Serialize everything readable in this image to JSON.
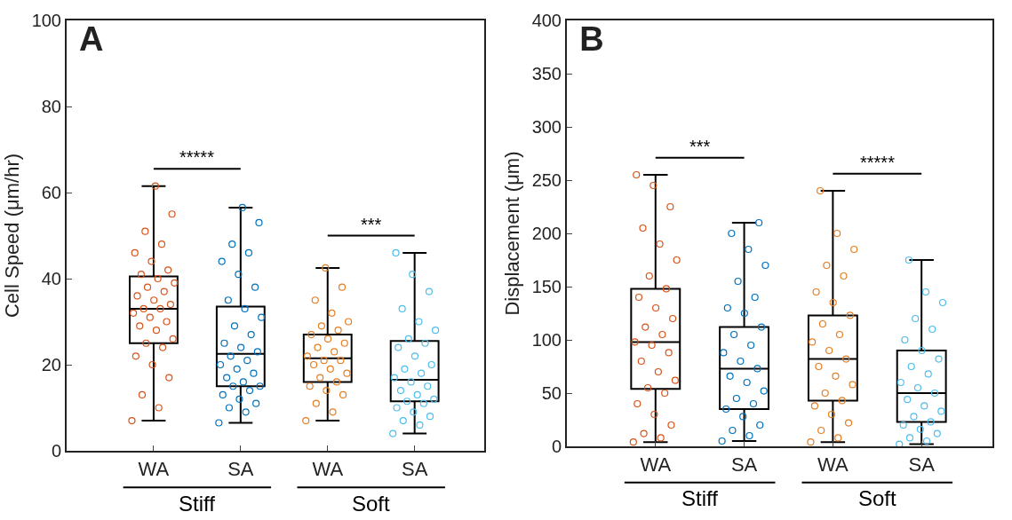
{
  "chart_data": [
    {
      "type": "box",
      "title": "A",
      "ylabel": "Cell Speed (μm/hr)",
      "categories": [
        "WA",
        "SA",
        "WA",
        "SA"
      ],
      "ylim": [
        0,
        100
      ],
      "yticks": [
        0,
        20,
        40,
        60,
        80,
        100
      ],
      "grid": false,
      "marker": "circle",
      "boxes": [
        {
          "low": 7,
          "q1": 25,
          "median": 33,
          "q3": 40.5,
          "high": 61.5
        },
        {
          "low": 6.5,
          "q1": 15,
          "median": 22.5,
          "q3": 33.5,
          "high": 56.5
        },
        {
          "low": 7,
          "q1": 16,
          "median": 21.5,
          "q3": 27,
          "high": 42.5
        },
        {
          "low": 4,
          "q1": 11.5,
          "median": 16.5,
          "q3": 25.5,
          "high": 46
        }
      ],
      "series": [
        {
          "type": "scatter",
          "colors": [
            "#d95319",
            "#0072bd",
            "#e67e22",
            "#4dbeee"
          ],
          "values": [
            7,
            6.5,
            7,
            4
          ]
        },
        {
          "type": "scatter",
          "colors": [
            "#d95319",
            "#0072bd",
            "#e67e22",
            "#4dbeee"
          ],
          "values": [
            10,
            9,
            9,
            6
          ]
        },
        {
          "type": "scatter",
          "colors": [
            "#d95319",
            "#0072bd",
            "#e67e22",
            "#4dbeee"
          ],
          "values": [
            13,
            10,
            11,
            7
          ]
        },
        {
          "type": "scatter",
          "colors": [
            "#d95319",
            "#0072bd",
            "#e67e22",
            "#4dbeee"
          ],
          "values": [
            17,
            11,
            13,
            8
          ]
        },
        {
          "type": "scatter",
          "colors": [
            "#d95319",
            "#0072bd",
            "#e67e22",
            "#4dbeee"
          ],
          "values": [
            20,
            12,
            14,
            9
          ]
        },
        {
          "type": "scatter",
          "colors": [
            "#d95319",
            "#0072bd",
            "#e67e22",
            "#4dbeee"
          ],
          "values": [
            22,
            13,
            15,
            10
          ]
        },
        {
          "type": "scatter",
          "colors": [
            "#d95319",
            "#0072bd",
            "#e67e22",
            "#4dbeee"
          ],
          "values": [
            24,
            14,
            16,
            11
          ]
        },
        {
          "type": "scatter",
          "colors": [
            "#d95319",
            "#0072bd",
            "#e67e22",
            "#4dbeee"
          ],
          "values": [
            25,
            15,
            17,
            11.5
          ]
        },
        {
          "type": "scatter",
          "colors": [
            "#d95319",
            "#0072bd",
            "#e67e22",
            "#4dbeee"
          ],
          "values": [
            26,
            15,
            18,
            12
          ]
        },
        {
          "type": "scatter",
          "colors": [
            "#d95319",
            "#0072bd",
            "#e67e22",
            "#4dbeee"
          ],
          "values": [
            28,
            16,
            19,
            13
          ]
        },
        {
          "type": "scatter",
          "colors": [
            "#d95319",
            "#0072bd",
            "#e67e22",
            "#4dbeee"
          ],
          "values": [
            29,
            17,
            20,
            14
          ]
        },
        {
          "type": "scatter",
          "colors": [
            "#d95319",
            "#0072bd",
            "#e67e22",
            "#4dbeee"
          ],
          "values": [
            30,
            18,
            21,
            15
          ]
        },
        {
          "type": "scatter",
          "colors": [
            "#d95319",
            "#0072bd",
            "#e67e22",
            "#4dbeee"
          ],
          "values": [
            31,
            19,
            21,
            16
          ]
        },
        {
          "type": "scatter",
          "colors": [
            "#d95319",
            "#0072bd",
            "#e67e22",
            "#4dbeee"
          ],
          "values": [
            32,
            20,
            22,
            17
          ]
        },
        {
          "type": "scatter",
          "colors": [
            "#d95319",
            "#0072bd",
            "#e67e22",
            "#4dbeee"
          ],
          "values": [
            33,
            21,
            23,
            18
          ]
        },
        {
          "type": "scatter",
          "colors": [
            "#d95319",
            "#0072bd",
            "#e67e22",
            "#4dbeee"
          ],
          "values": [
            33,
            22,
            24,
            19
          ]
        },
        {
          "type": "scatter",
          "colors": [
            "#d95319",
            "#0072bd",
            "#e67e22",
            "#4dbeee"
          ],
          "values": [
            34,
            23,
            25,
            20
          ]
        },
        {
          "type": "scatter",
          "colors": [
            "#d95319",
            "#0072bd",
            "#e67e22",
            "#4dbeee"
          ],
          "values": [
            35,
            24,
            26,
            22
          ]
        },
        {
          "type": "scatter",
          "colors": [
            "#d95319",
            "#0072bd",
            "#e67e22",
            "#4dbeee"
          ],
          "values": [
            36,
            25,
            27,
            24
          ]
        },
        {
          "type": "scatter",
          "colors": [
            "#d95319",
            "#0072bd",
            "#e67e22",
            "#4dbeee"
          ],
          "values": [
            37,
            27,
            28,
            25
          ]
        },
        {
          "type": "scatter",
          "colors": [
            "#d95319",
            "#0072bd",
            "#e67e22",
            "#4dbeee"
          ],
          "values": [
            38,
            29,
            29,
            26
          ]
        },
        {
          "type": "scatter",
          "colors": [
            "#d95319",
            "#0072bd",
            "#e67e22",
            "#4dbeee"
          ],
          "values": [
            39,
            31,
            30,
            28
          ]
        },
        {
          "type": "scatter",
          "colors": [
            "#d95319",
            "#0072bd",
            "#e67e22",
            "#4dbeee"
          ],
          "values": [
            40,
            33,
            32,
            30
          ]
        },
        {
          "type": "scatter",
          "colors": [
            "#d95319",
            "#0072bd",
            "#e67e22",
            "#4dbeee"
          ],
          "values": [
            41,
            35,
            35,
            33
          ]
        },
        {
          "type": "scatter",
          "colors": [
            "#d95319",
            "#0072bd",
            "#e67e22",
            "#4dbeee"
          ],
          "values": [
            42,
            38,
            38,
            37
          ]
        },
        {
          "type": "scatter",
          "colors": [
            "#d95319",
            "#0072bd",
            "#e67e22",
            "#4dbeee"
          ],
          "values": [
            44,
            41,
            42.5,
            41
          ]
        },
        {
          "type": "scatter",
          "colors": [
            "#d95319",
            "#0072bd",
            "#e67e22",
            "#4dbeee"
          ],
          "values": [
            46,
            44,
            null,
            46
          ]
        },
        {
          "type": "scatter",
          "colors": [
            "#d95319",
            "#0072bd",
            "#e67e22",
            "#4dbeee"
          ],
          "values": [
            48,
            46,
            null,
            null
          ]
        },
        {
          "type": "scatter",
          "colors": [
            "#d95319",
            "#0072bd",
            "#e67e22",
            "#4dbeee"
          ],
          "values": [
            51,
            48,
            null,
            null
          ]
        },
        {
          "type": "scatter",
          "colors": [
            "#d95319",
            "#0072bd",
            "#e67e22",
            "#4dbeee"
          ],
          "values": [
            55,
            53,
            null,
            null
          ]
        },
        {
          "type": "scatter",
          "colors": [
            "#d95319",
            "#0072bd",
            "#e67e22",
            "#4dbeee"
          ],
          "values": [
            61.5,
            56.5,
            null,
            null
          ]
        }
      ],
      "annotations": [
        "*****",
        "***",
        "Stiff",
        "Soft"
      ]
    },
    {
      "type": "box",
      "title": "B",
      "ylabel": "Displacement (μm)",
      "categories": [
        "WA",
        "SA",
        "WA",
        "SA"
      ],
      "ylim": [
        0,
        400
      ],
      "yticks": [
        0,
        50,
        100,
        150,
        200,
        250,
        300,
        350,
        400
      ],
      "grid": false,
      "marker": "circle",
      "boxes": [
        {
          "low": 4,
          "q1": 54,
          "median": 98,
          "q3": 148,
          "high": 255
        },
        {
          "low": 5,
          "q1": 35,
          "median": 73,
          "q3": 112,
          "high": 210
        },
        {
          "low": 4,
          "q1": 43,
          "median": 82,
          "q3": 123,
          "high": 240
        },
        {
          "low": 2,
          "q1": 23,
          "median": 50,
          "q3": 90,
          "high": 175
        }
      ],
      "series": [
        {
          "type": "scatter",
          "colors": [
            "#d95319",
            "#0072bd",
            "#e67e22",
            "#4dbeee"
          ],
          "values": [
            4,
            5,
            4,
            2
          ]
        },
        {
          "type": "scatter",
          "colors": [
            "#d95319",
            "#0072bd",
            "#e67e22",
            "#4dbeee"
          ],
          "values": [
            8,
            10,
            8,
            5
          ]
        },
        {
          "type": "scatter",
          "colors": [
            "#d95319",
            "#0072bd",
            "#e67e22",
            "#4dbeee"
          ],
          "values": [
            12,
            15,
            15,
            8
          ]
        },
        {
          "type": "scatter",
          "colors": [
            "#d95319",
            "#0072bd",
            "#e67e22",
            "#4dbeee"
          ],
          "values": [
            20,
            20,
            22,
            12
          ]
        },
        {
          "type": "scatter",
          "colors": [
            "#d95319",
            "#0072bd",
            "#e67e22",
            "#4dbeee"
          ],
          "values": [
            30,
            28,
            30,
            16
          ]
        },
        {
          "type": "scatter",
          "colors": [
            "#d95319",
            "#0072bd",
            "#e67e22",
            "#4dbeee"
          ],
          "values": [
            40,
            35,
            38,
            20
          ]
        },
        {
          "type": "scatter",
          "colors": [
            "#d95319",
            "#0072bd",
            "#e67e22",
            "#4dbeee"
          ],
          "values": [
            50,
            40,
            43,
            23
          ]
        },
        {
          "type": "scatter",
          "colors": [
            "#d95319",
            "#0072bd",
            "#e67e22",
            "#4dbeee"
          ],
          "values": [
            55,
            45,
            50,
            28
          ]
        },
        {
          "type": "scatter",
          "colors": [
            "#d95319",
            "#0072bd",
            "#e67e22",
            "#4dbeee"
          ],
          "values": [
            62,
            52,
            58,
            33
          ]
        },
        {
          "type": "scatter",
          "colors": [
            "#d95319",
            "#0072bd",
            "#e67e22",
            "#4dbeee"
          ],
          "values": [
            70,
            60,
            66,
            38
          ]
        },
        {
          "type": "scatter",
          "colors": [
            "#d95319",
            "#0072bd",
            "#e67e22",
            "#4dbeee"
          ],
          "values": [
            80,
            66,
            75,
            44
          ]
        },
        {
          "type": "scatter",
          "colors": [
            "#d95319",
            "#0072bd",
            "#e67e22",
            "#4dbeee"
          ],
          "values": [
            88,
            73,
            82,
            50
          ]
        },
        {
          "type": "scatter",
          "colors": [
            "#d95319",
            "#0072bd",
            "#e67e22",
            "#4dbeee"
          ],
          "values": [
            95,
            80,
            90,
            55
          ]
        },
        {
          "type": "scatter",
          "colors": [
            "#d95319",
            "#0072bd",
            "#e67e22",
            "#4dbeee"
          ],
          "values": [
            98,
            88,
            98,
            60
          ]
        },
        {
          "type": "scatter",
          "colors": [
            "#d95319",
            "#0072bd",
            "#e67e22",
            "#4dbeee"
          ],
          "values": [
            105,
            95,
            105,
            68
          ]
        },
        {
          "type": "scatter",
          "colors": [
            "#d95319",
            "#0072bd",
            "#e67e22",
            "#4dbeee"
          ],
          "values": [
            112,
            105,
            115,
            75
          ]
        },
        {
          "type": "scatter",
          "colors": [
            "#d95319",
            "#0072bd",
            "#e67e22",
            "#4dbeee"
          ],
          "values": [
            120,
            112,
            123,
            82
          ]
        },
        {
          "type": "scatter",
          "colors": [
            "#d95319",
            "#0072bd",
            "#e67e22",
            "#4dbeee"
          ],
          "values": [
            130,
            125,
            135,
            90
          ]
        },
        {
          "type": "scatter",
          "colors": [
            "#d95319",
            "#0072bd",
            "#e67e22",
            "#4dbeee"
          ],
          "values": [
            140,
            130,
            145,
            100
          ]
        },
        {
          "type": "scatter",
          "colors": [
            "#d95319",
            "#0072bd",
            "#e67e22",
            "#4dbeee"
          ],
          "values": [
            148,
            140,
            160,
            110
          ]
        },
        {
          "type": "scatter",
          "colors": [
            "#d95319",
            "#0072bd",
            "#e67e22",
            "#4dbeee"
          ],
          "values": [
            160,
            155,
            170,
            120
          ]
        },
        {
          "type": "scatter",
          "colors": [
            "#d95319",
            "#0072bd",
            "#e67e22",
            "#4dbeee"
          ],
          "values": [
            175,
            170,
            185,
            135
          ]
        },
        {
          "type": "scatter",
          "colors": [
            "#d95319",
            "#0072bd",
            "#e67e22",
            "#4dbeee"
          ],
          "values": [
            190,
            185,
            200,
            145
          ]
        },
        {
          "type": "scatter",
          "colors": [
            "#d95319",
            "#0072bd",
            "#e67e22",
            "#4dbeee"
          ],
          "values": [
            205,
            200,
            240,
            175
          ]
        },
        {
          "type": "scatter",
          "colors": [
            "#d95319",
            "#0072bd",
            "#e67e22",
            "#4dbeee"
          ],
          "values": [
            225,
            210,
            null,
            null
          ]
        },
        {
          "type": "scatter",
          "colors": [
            "#d95319",
            "#0072bd",
            "#e67e22",
            "#4dbeee"
          ],
          "values": [
            245,
            null,
            null,
            null
          ]
        },
        {
          "type": "scatter",
          "colors": [
            "#d95319",
            "#0072bd",
            "#e67e22",
            "#4dbeee"
          ],
          "values": [
            255,
            null,
            null,
            null
          ]
        }
      ],
      "annotations": [
        "***",
        "*****",
        "Stiff",
        "Soft"
      ]
    }
  ]
}
